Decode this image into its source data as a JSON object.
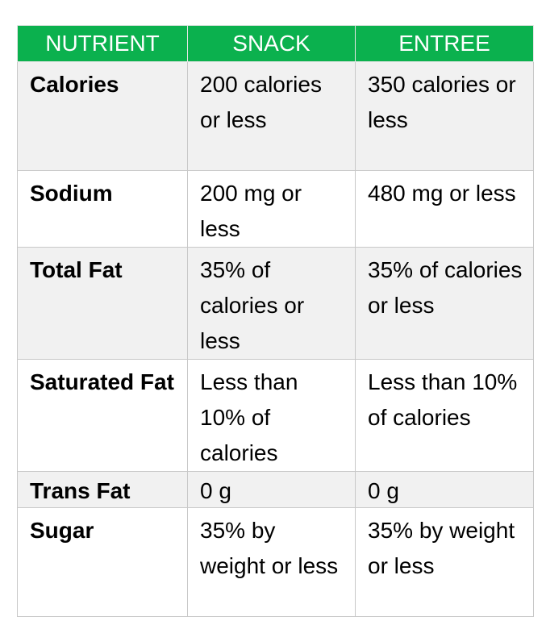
{
  "headers": [
    "NUTRIENT",
    "SNACK",
    "ENTREE"
  ],
  "rows": [
    {
      "nutrient": "Calories",
      "snack": "200 calories or less",
      "entree": "350 calories or less"
    },
    {
      "nutrient": "Sodium",
      "snack": "200 mg or less",
      "entree": "480 mg or less"
    },
    {
      "nutrient": "Total Fat",
      "snack": "35% of calories or less",
      "entree": "35% of calories or less"
    },
    {
      "nutrient": "Saturated Fat",
      "snack": "Less than 10% of calories",
      "entree": "Less than 10% of calories"
    },
    {
      "nutrient": "Trans Fat",
      "snack": "0 g",
      "entree": "0 g"
    },
    {
      "nutrient": "Sugar",
      "snack": "35% by weight or less",
      "entree": "35% by weight or less"
    }
  ],
  "colors": {
    "header_bg": "#0bb14e",
    "header_text": "#ffffff",
    "odd_row_bg": "#f1f1f1",
    "even_row_bg": "#ffffff",
    "border": "#c8c8c8"
  }
}
